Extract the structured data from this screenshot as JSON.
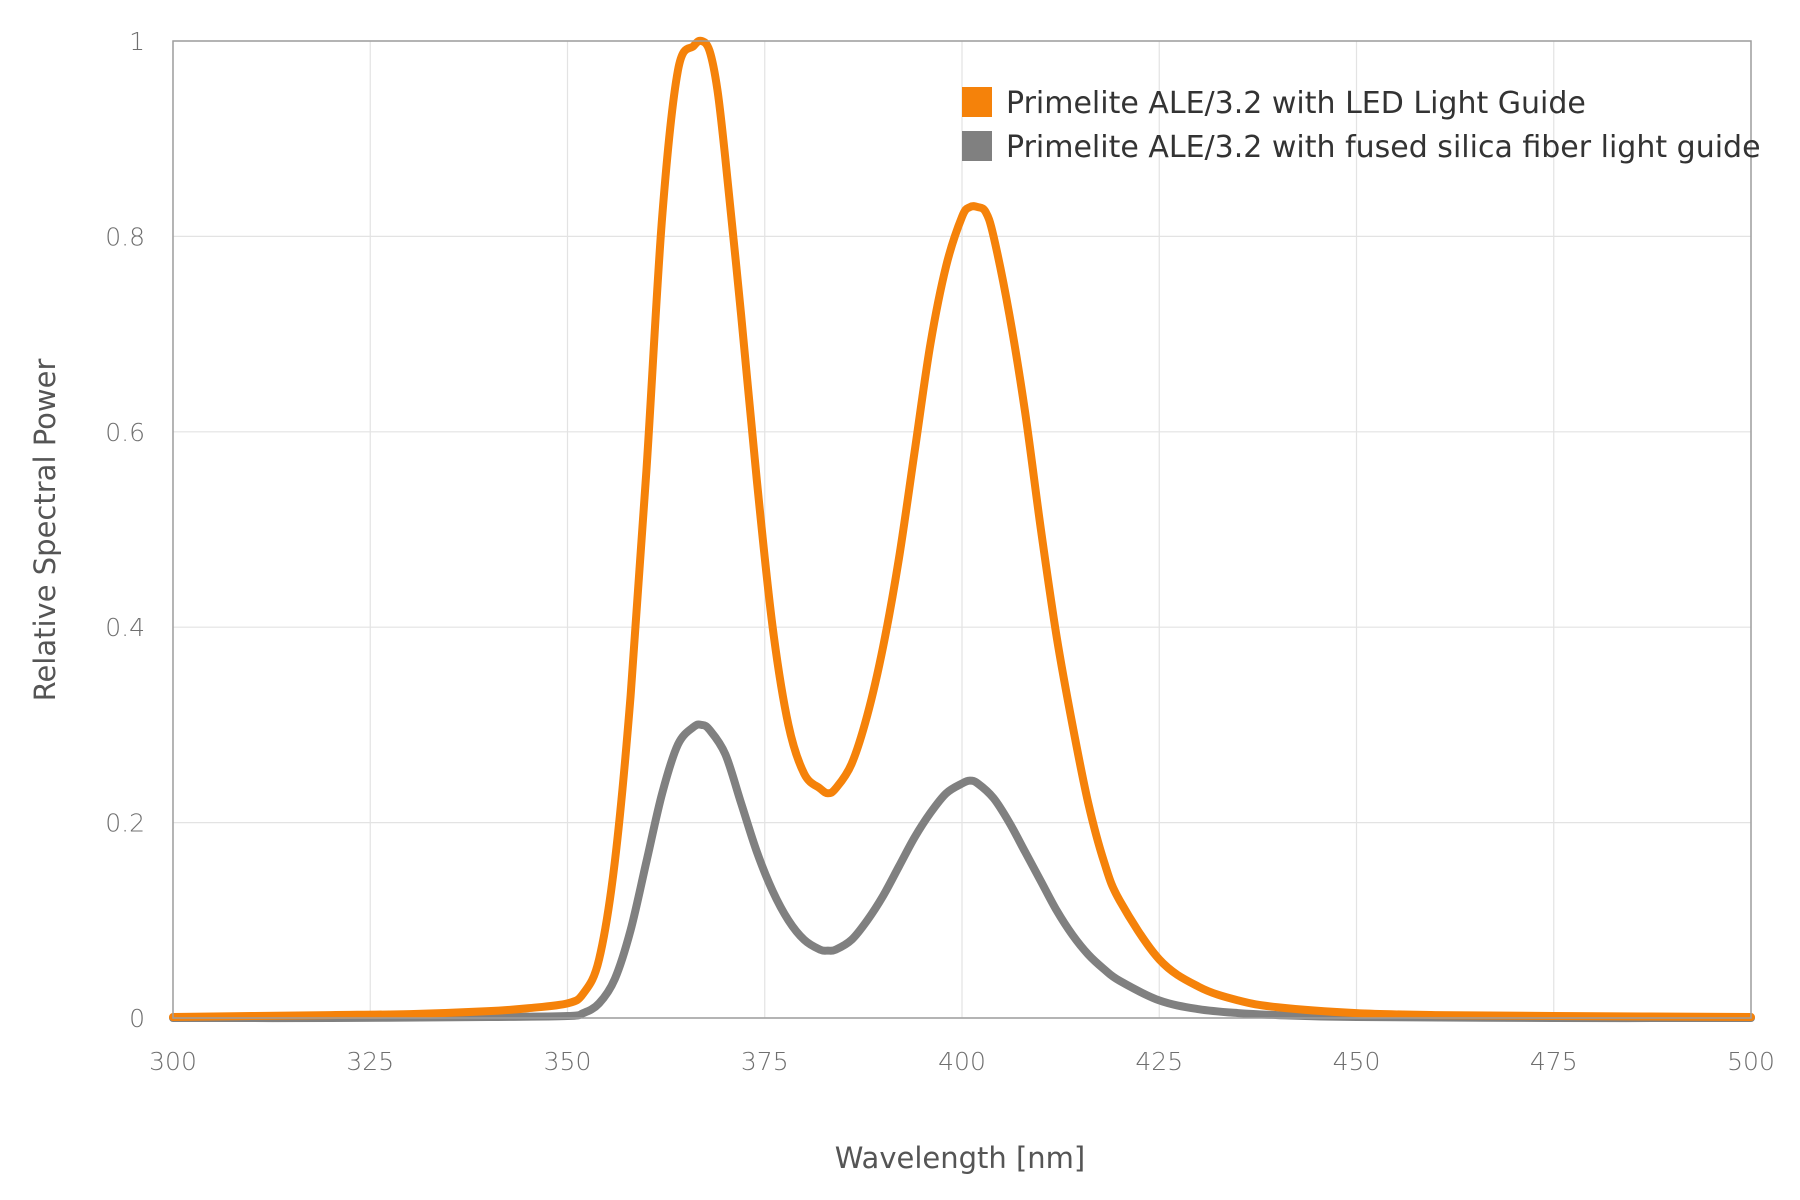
{
  "chart_data": {
    "type": "line",
    "title": "",
    "xlabel": "Wavelength [nm]",
    "ylabel": "Relative Spectral Power",
    "xlim": [
      300,
      500
    ],
    "ylim": [
      0,
      1
    ],
    "xticks": [
      300,
      325,
      350,
      375,
      400,
      425,
      450,
      475,
      500
    ],
    "yticks": [
      0,
      0.2,
      0.4,
      0.6,
      0.8,
      1
    ],
    "ytick_labels": [
      "0",
      "0.2",
      "0.4",
      "0.6",
      "0.8",
      "1"
    ],
    "grid": true,
    "legend_position": "top-right",
    "series": [
      {
        "name": "Primelite ALE/3.2 with LED Light Guide",
        "color": "#f5820a",
        "x": [
          300,
          310,
          320,
          330,
          340,
          345,
          350,
          352,
          354,
          356,
          358,
          360,
          362,
          364,
          366,
          367,
          368,
          369,
          370,
          372,
          374,
          376,
          378,
          380,
          382,
          383,
          384,
          386,
          388,
          390,
          392,
          394,
          396,
          398,
          400,
          401,
          402,
          403,
          404,
          406,
          408,
          410,
          412,
          414,
          416,
          418,
          420,
          425,
          430,
          435,
          440,
          450,
          460,
          475,
          500
        ],
        "y": [
          0.001,
          0.002,
          0.003,
          0.004,
          0.007,
          0.01,
          0.015,
          0.025,
          0.06,
          0.16,
          0.33,
          0.56,
          0.82,
          0.97,
          0.995,
          1.0,
          0.99,
          0.95,
          0.88,
          0.72,
          0.55,
          0.4,
          0.3,
          0.25,
          0.235,
          0.23,
          0.235,
          0.26,
          0.31,
          0.38,
          0.47,
          0.58,
          0.69,
          0.77,
          0.82,
          0.83,
          0.83,
          0.825,
          0.8,
          0.72,
          0.62,
          0.5,
          0.39,
          0.3,
          0.22,
          0.16,
          0.12,
          0.06,
          0.032,
          0.018,
          0.011,
          0.005,
          0.003,
          0.002,
          0.001
        ]
      },
      {
        "name": "Primelite ALE/3.2 with fused silica fiber light guide",
        "color": "#808080",
        "x": [
          300,
          320,
          340,
          350,
          352,
          354,
          356,
          358,
          360,
          362,
          364,
          366,
          367,
          368,
          370,
          372,
          374,
          376,
          378,
          380,
          382,
          383,
          384,
          386,
          388,
          390,
          392,
          394,
          396,
          398,
          400,
          401,
          402,
          404,
          406,
          408,
          410,
          412,
          414,
          416,
          418,
          420,
          425,
          430,
          435,
          440,
          450,
          475,
          500
        ],
        "y": [
          0,
          0,
          0.001,
          0.002,
          0.005,
          0.015,
          0.04,
          0.09,
          0.16,
          0.23,
          0.28,
          0.298,
          0.3,
          0.295,
          0.27,
          0.22,
          0.17,
          0.13,
          0.1,
          0.08,
          0.07,
          0.069,
          0.07,
          0.08,
          0.1,
          0.125,
          0.155,
          0.185,
          0.21,
          0.23,
          0.24,
          0.243,
          0.24,
          0.225,
          0.2,
          0.17,
          0.14,
          0.11,
          0.085,
          0.065,
          0.05,
          0.038,
          0.018,
          0.009,
          0.005,
          0.003,
          0.001,
          0,
          0
        ]
      }
    ]
  }
}
